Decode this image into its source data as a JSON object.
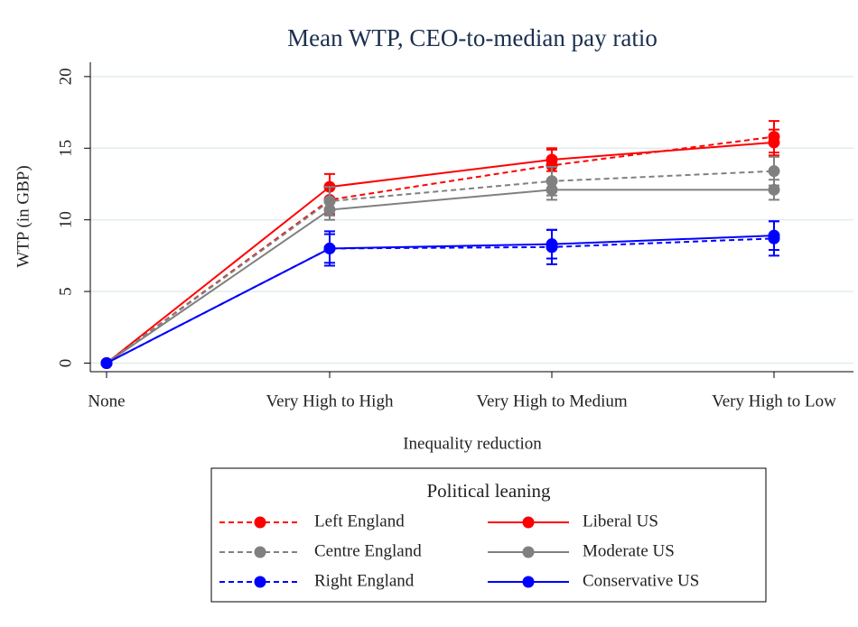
{
  "chart_data": {
    "type": "line",
    "title": "Mean WTP, CEO-to-median pay ratio",
    "x_label": "Inequality reduction",
    "y_label": "WTP (in GBP)",
    "categories": [
      "None",
      "Very High to High",
      "Very High to Medium",
      "Very High to Low"
    ],
    "ylim": [
      -0.6,
      21
    ],
    "yticks": [
      0,
      5,
      10,
      15,
      20
    ],
    "grid": true,
    "legend_title": "Political leaning",
    "legend_position": "bottom",
    "series": [
      {
        "name": "Left England",
        "color": "#ff0000",
        "dash": true,
        "values": [
          0,
          11.4,
          13.8,
          15.8
        ],
        "errors": [
          null,
          1.0,
          1.1,
          1.1
        ]
      },
      {
        "name": "Liberal US",
        "color": "#ff0000",
        "dash": false,
        "values": [
          0,
          12.3,
          14.2,
          15.4
        ],
        "errors": [
          null,
          0.9,
          0.8,
          0.9
        ]
      },
      {
        "name": "Centre England",
        "color": "#808080",
        "dash": true,
        "values": [
          0,
          11.3,
          12.7,
          13.4
        ],
        "errors": [
          null,
          1.0,
          1.0,
          1.0
        ]
      },
      {
        "name": "Moderate US",
        "color": "#808080",
        "dash": false,
        "values": [
          0,
          10.7,
          12.1,
          12.1
        ],
        "errors": [
          null,
          0.7,
          0.7,
          0.7
        ]
      },
      {
        "name": "Right England",
        "color": "#0000ff",
        "dash": true,
        "values": [
          0,
          8.0,
          8.1,
          8.7
        ],
        "errors": [
          null,
          1.2,
          1.2,
          1.2
        ]
      },
      {
        "name": "Conservative US",
        "color": "#0000ff",
        "dash": false,
        "values": [
          0,
          8.0,
          8.3,
          8.9
        ],
        "errors": [
          null,
          1.0,
          1.0,
          1.0
        ]
      }
    ]
  }
}
